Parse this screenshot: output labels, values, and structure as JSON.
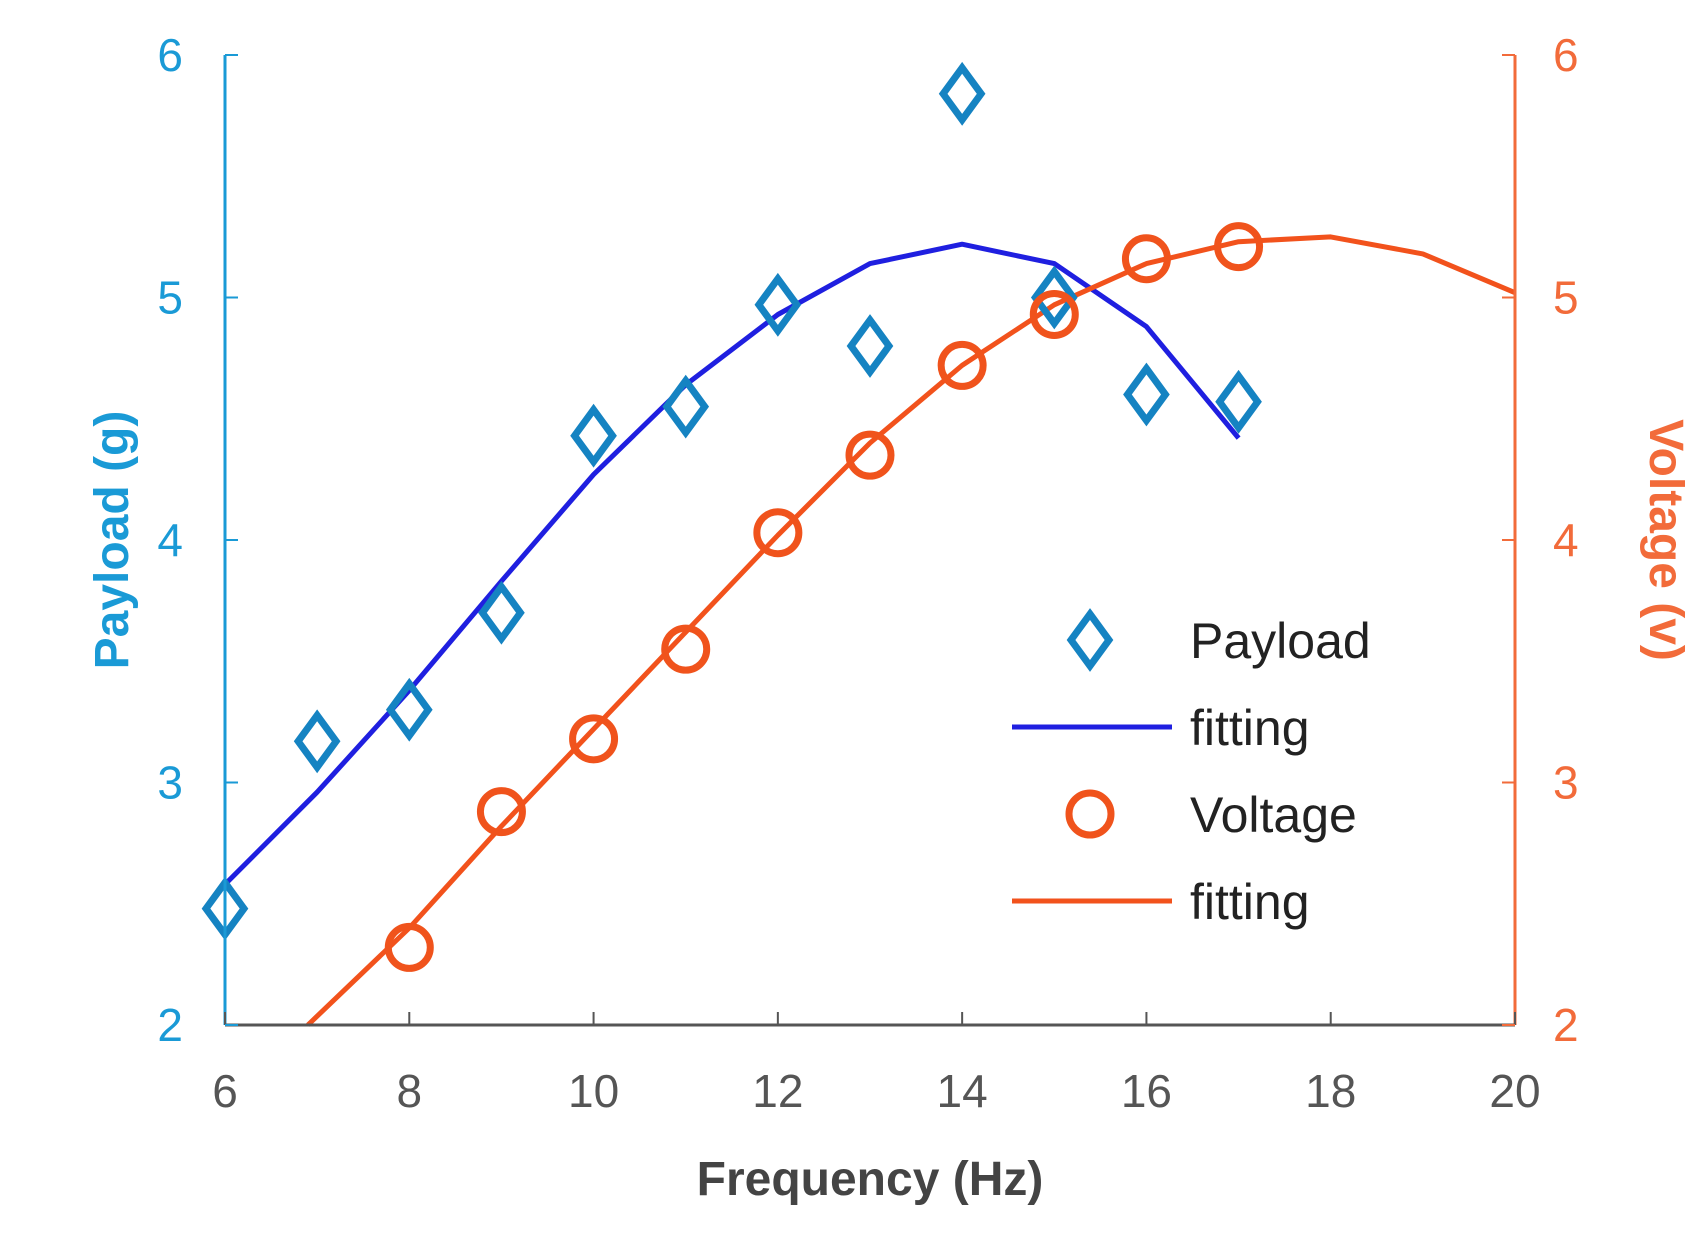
{
  "chart_data": {
    "type": "scatter",
    "title": "",
    "xlabel": "Frequency (Hz)",
    "ylabel_left": "Payload (g)",
    "ylabel_right": "Voltage (v)",
    "xlim": [
      6,
      20
    ],
    "ylim_left": [
      2,
      6
    ],
    "ylim_right": [
      2,
      6
    ],
    "x_ticks": [
      "6",
      "8",
      "10",
      "12",
      "14",
      "16",
      "18",
      "20"
    ],
    "y_left_ticks": [
      "2",
      "3",
      "4",
      "5",
      "6"
    ],
    "y_right_ticks": [
      "2",
      "3",
      "4",
      "5",
      "6"
    ],
    "grid": false,
    "legend_position": "lower-right",
    "colors": {
      "left_axis": "#1a9ad6",
      "right_axis": "#f26b3a",
      "payload_marker": "#1583c2",
      "payload_fit": "#1f1fe0",
      "voltage_marker": "#f0531c",
      "voltage_fit": "#f2521c",
      "bottom_axis": "#555555",
      "tick_text": "#555555"
    },
    "series": [
      {
        "name": "Payload",
        "kind": "marker",
        "marker": "diamond",
        "axis": "left",
        "x": [
          6,
          7,
          8,
          9,
          10,
          11,
          12,
          13,
          14,
          15,
          16,
          17
        ],
        "y": [
          2.48,
          3.17,
          3.3,
          3.7,
          4.43,
          4.55,
          4.97,
          4.8,
          5.84,
          5.0,
          4.6,
          4.57
        ]
      },
      {
        "name": "fitting",
        "kind": "line",
        "axis": "left",
        "x": [
          6,
          7,
          8,
          9,
          10,
          11,
          12,
          13,
          14,
          15,
          16,
          17
        ],
        "y": [
          2.58,
          2.96,
          3.38,
          3.83,
          4.27,
          4.64,
          4.93,
          5.14,
          5.22,
          5.14,
          4.88,
          4.42
        ]
      },
      {
        "name": "Voltage",
        "kind": "marker",
        "marker": "circle",
        "axis": "right",
        "x": [
          8,
          9,
          10,
          11,
          12,
          13,
          14,
          15,
          16,
          17
        ],
        "y": [
          2.32,
          2.88,
          3.18,
          3.55,
          4.03,
          4.35,
          4.72,
          4.93,
          5.16,
          5.21
        ]
      },
      {
        "name": "fitting",
        "kind": "line",
        "axis": "right",
        "x": [
          6.9,
          8,
          9,
          10,
          11,
          12,
          13,
          14,
          15,
          16,
          17,
          18,
          19,
          20
        ],
        "y": [
          2.0,
          2.4,
          2.82,
          3.22,
          3.62,
          4.02,
          4.4,
          4.72,
          4.97,
          5.14,
          5.23,
          5.25,
          5.18,
          5.02
        ]
      }
    ]
  }
}
